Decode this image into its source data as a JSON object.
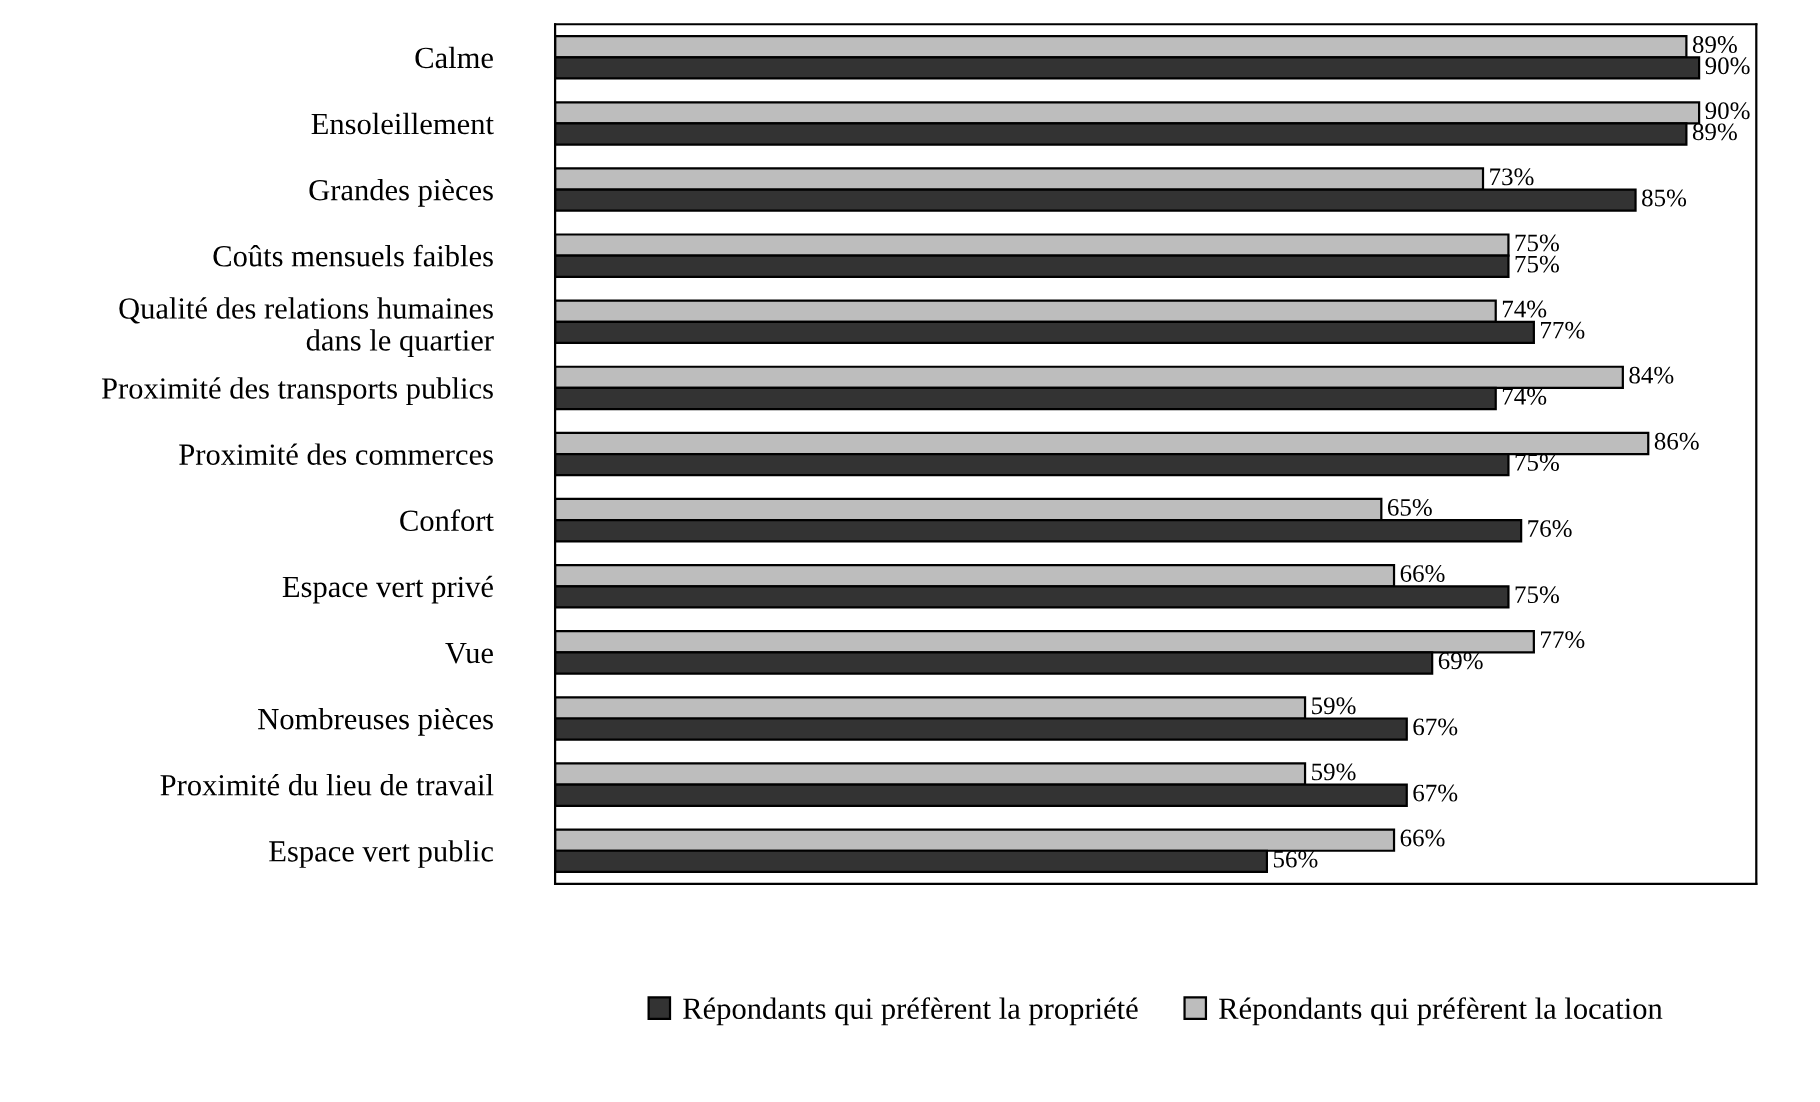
{
  "chart_data": {
    "type": "bar",
    "orientation": "horizontal",
    "categories": [
      "Calme",
      "Ensoleillement",
      "Grandes pièces",
      "Coûts mensuels faibles",
      "Qualité des relations humaines\ndans le quartier",
      "Proximité des transports publics",
      "Proximité des commerces",
      "Confort",
      "Espace vert privé",
      "Vue",
      "Nombreuses pièces",
      "Proximité du lieu de travail",
      "Espace vert public"
    ],
    "series": [
      {
        "name": "Répondants qui préfèrent la location",
        "color": "#bdbdbd",
        "values": [
          89,
          90,
          73,
          75,
          74,
          84,
          86,
          65,
          66,
          77,
          59,
          59,
          66
        ],
        "value_labels": [
          "89%",
          "90%",
          "73%",
          "75%",
          "74%",
          "84%",
          "86%",
          "65%",
          "66%",
          "77%",
          "59%",
          "59%",
          "66%"
        ]
      },
      {
        "name": "Répondants qui préfèrent la propriété",
        "color": "#333333",
        "values": [
          90,
          89,
          85,
          75,
          77,
          74,
          75,
          76,
          75,
          69,
          67,
          67,
          56
        ],
        "value_labels": [
          "90%",
          "89%",
          "85%",
          "75%",
          "77%",
          "74%",
          "75%",
          "76%",
          "75%",
          "69%",
          "67%",
          "67%",
          "56%"
        ]
      }
    ],
    "legend": "bottom",
    "grid": false
  }
}
